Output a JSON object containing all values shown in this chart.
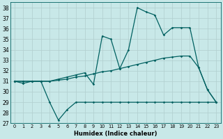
{
  "title": "",
  "xlabel": "Humidex (Indice chaleur)",
  "background_color": "#c8e8e8",
  "grid_color": "#b0cece",
  "line_color": "#006060",
  "xlim": [
    -0.5,
    23.5
  ],
  "ylim": [
    27,
    38.5
  ],
  "yticks": [
    27,
    28,
    29,
    30,
    31,
    32,
    33,
    34,
    35,
    36,
    37,
    38
  ],
  "xticks": [
    0,
    1,
    2,
    3,
    4,
    5,
    6,
    7,
    8,
    9,
    10,
    11,
    12,
    13,
    14,
    15,
    16,
    17,
    18,
    19,
    20,
    21,
    22,
    23
  ],
  "series_min": {
    "x": [
      0,
      1,
      2,
      3,
      4,
      5,
      6,
      7,
      8,
      9,
      10,
      11,
      12,
      13,
      14,
      15,
      16,
      17,
      18,
      19,
      20,
      21,
      22,
      23
    ],
    "y": [
      31,
      30.8,
      31,
      31,
      29,
      27.3,
      28.3,
      29,
      29,
      29,
      29,
      29,
      29,
      29,
      29,
      29,
      29,
      29,
      29,
      29,
      29,
      29,
      29,
      29
    ]
  },
  "series_avg": {
    "x": [
      0,
      1,
      2,
      3,
      4,
      5,
      6,
      7,
      8,
      9,
      10,
      11,
      12,
      13,
      14,
      15,
      16,
      17,
      18,
      19,
      20,
      21,
      22,
      23
    ],
    "y": [
      31,
      31,
      31,
      31,
      31,
      31.1,
      31.2,
      31.4,
      31.5,
      31.7,
      31.9,
      32.0,
      32.2,
      32.4,
      32.6,
      32.8,
      33.0,
      33.2,
      33.3,
      33.4,
      33.4,
      32.3,
      30.2,
      29.0
    ]
  },
  "series_max": {
    "x": [
      0,
      1,
      2,
      3,
      4,
      5,
      6,
      7,
      8,
      9,
      10,
      11,
      12,
      13,
      14,
      15,
      16,
      17,
      18,
      19,
      20,
      21,
      22,
      23
    ],
    "y": [
      31,
      31,
      31,
      31,
      31,
      31.2,
      31.4,
      31.6,
      31.8,
      30.7,
      35.3,
      35.0,
      32.2,
      34.0,
      38.0,
      37.6,
      37.3,
      35.4,
      36.1,
      36.1,
      36.1,
      32.3,
      30.2,
      29.0
    ]
  }
}
